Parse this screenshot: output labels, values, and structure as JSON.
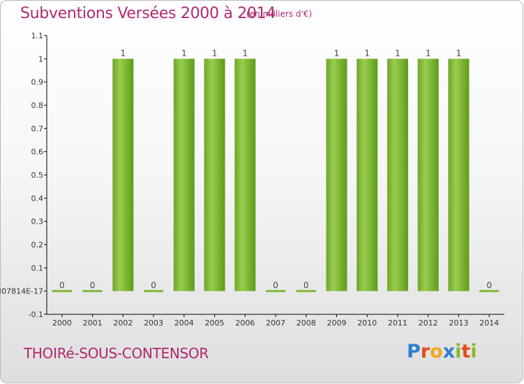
{
  "header": {
    "title": "Subventions Versées 2000 à 2014",
    "unit": "(en milliers d'€)"
  },
  "footer": {
    "commune": "THOIRé-SOUS-CONTENSOR",
    "logo_letters": [
      "P",
      "r",
      "o",
      "x",
      "i",
      "t",
      "i"
    ]
  },
  "colors": {
    "title": "#b0286f",
    "bar_light": "#9acd4d",
    "bar_dark": "#5f9b1a",
    "axis": "#000000",
    "grid": "#cccccc"
  },
  "chart_data": {
    "type": "bar",
    "title": "Subventions Versées 2000 à 2014",
    "subtitle": "(en milliers d'€)",
    "xlabel": "",
    "ylabel": "",
    "categories": [
      "2000",
      "2001",
      "2002",
      "2003",
      "2004",
      "2005",
      "2006",
      "2007",
      "2008",
      "2009",
      "2010",
      "2011",
      "2012",
      "2013",
      "2014"
    ],
    "values": [
      0,
      0,
      1,
      0,
      1,
      1,
      1,
      0,
      0,
      1,
      1,
      1,
      1,
      1,
      0
    ],
    "data_labels": [
      "0",
      "0",
      "1",
      "0",
      "1",
      "1",
      "1",
      "0",
      "0",
      "1",
      "1",
      "1",
      "1",
      "1",
      "0"
    ],
    "ylim": [
      -0.1,
      1.1
    ],
    "y_ticks": [
      -0.1,
      0,
      0.1,
      0.2,
      0.3,
      0.4,
      0.5,
      0.6,
      0.7,
      0.8,
      0.9,
      1,
      1.1
    ],
    "y_tick_labels": [
      "-0.1",
      "307814E-17",
      "0.1",
      "0.2",
      "0.3",
      "0.4",
      "0.5",
      "0.6",
      "0.7",
      "0.8",
      "0.9",
      "1",
      "1.1"
    ],
    "grid": false,
    "legend": "none"
  }
}
